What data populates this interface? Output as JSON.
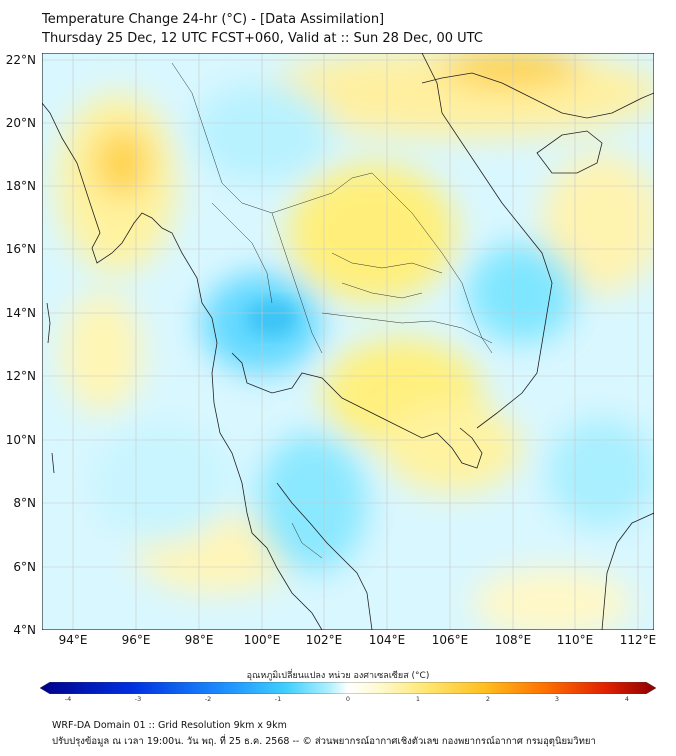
{
  "title": {
    "line1": "Temperature Change 24-hr (°C) - [Data Assimilation]",
    "line2": "Thursday 25 Dec, 12 UTC FCST+060, Valid at :: Sun 28 Dec, 00 UTC"
  },
  "map": {
    "lon_range": [
      93,
      112.5
    ],
    "lat_range": [
      4,
      22.2
    ],
    "lat_labels": [
      "22°N",
      "20°N",
      "18°N",
      "16°N",
      "14°N",
      "12°N",
      "10°N",
      "8°N",
      "6°N",
      "4°N"
    ],
    "lon_labels": [
      "94°E",
      "96°E",
      "98°E",
      "100°E",
      "102°E",
      "104°E",
      "106°E",
      "108°E",
      "110°E",
      "112°E"
    ]
  },
  "colorbar": {
    "label": "อุณหภูมิเปลี่ยนแปลง หน่วย องศาเซลเซียส (°C)",
    "ticks": [
      "-4",
      "-3",
      "-2",
      "-1",
      "0",
      "1",
      "2",
      "3",
      "4"
    ],
    "range": [
      -4,
      4
    ]
  },
  "colors": {
    "cold_deep": "#00008b",
    "cold": "#1e90ff",
    "cool": "#7fe6ff",
    "neutral": "#ffffff",
    "warm": "#ffe97a",
    "hot": "#ff8c00",
    "hot_deep": "#8b0000"
  },
  "footer": {
    "line1": "WRF-DA Domain 01 :: Grid Resolution 9km x 9km",
    "line2": "ปรับปรุงข้อมูล ณ เวลา 19:00น. วัน พฤ. ที่ 25 ธ.ค. 2568 -- © ส่วนพยากรณ์อากาศเชิงตัวเลข กองพยากรณ์อากาศ กรมอุตุนิยมวิทยา"
  }
}
